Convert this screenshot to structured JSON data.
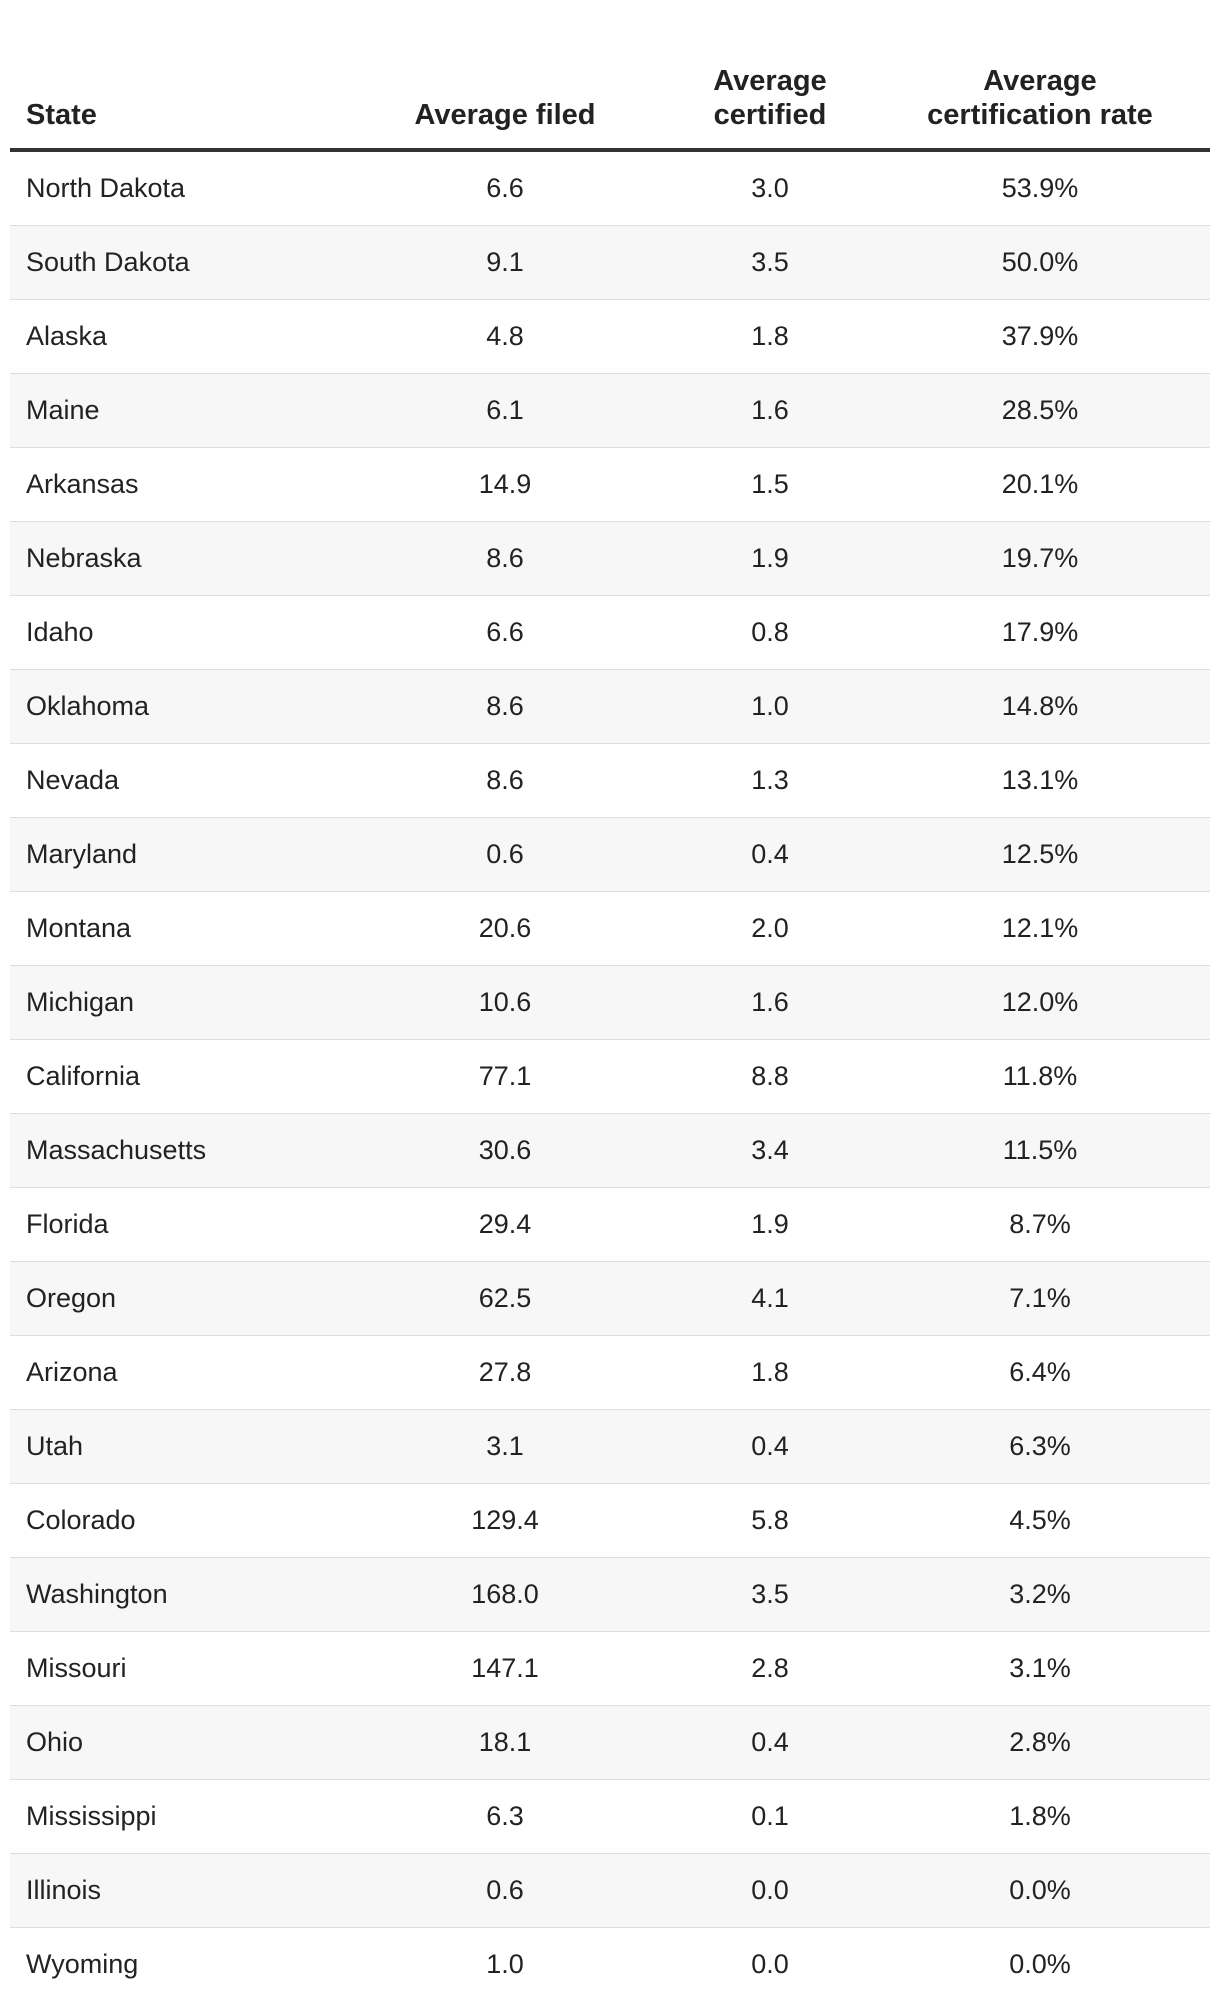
{
  "table": {
    "headers": [
      "State",
      "Average filed",
      "Average certified",
      "Average certification rate"
    ],
    "header_lines": [
      [
        "State"
      ],
      [
        "Average filed"
      ],
      [
        "Average",
        "certified"
      ],
      [
        "Average",
        "certification rate"
      ]
    ],
    "rows": [
      [
        "North Dakota",
        "6.6",
        "3.0",
        "53.9%"
      ],
      [
        "South Dakota",
        "9.1",
        "3.5",
        "50.0%"
      ],
      [
        "Alaska",
        "4.8",
        "1.8",
        "37.9%"
      ],
      [
        "Maine",
        "6.1",
        "1.6",
        "28.5%"
      ],
      [
        "Arkansas",
        "14.9",
        "1.5",
        "20.1%"
      ],
      [
        "Nebraska",
        "8.6",
        "1.9",
        "19.7%"
      ],
      [
        "Idaho",
        "6.6",
        "0.8",
        "17.9%"
      ],
      [
        "Oklahoma",
        "8.6",
        "1.0",
        "14.8%"
      ],
      [
        "Nevada",
        "8.6",
        "1.3",
        "13.1%"
      ],
      [
        "Maryland",
        "0.6",
        "0.4",
        "12.5%"
      ],
      [
        "Montana",
        "20.6",
        "2.0",
        "12.1%"
      ],
      [
        "Michigan",
        "10.6",
        "1.6",
        "12.0%"
      ],
      [
        "California",
        "77.1",
        "8.8",
        "11.8%"
      ],
      [
        "Massachusetts",
        "30.6",
        "3.4",
        "11.5%"
      ],
      [
        "Florida",
        "29.4",
        "1.9",
        "8.7%"
      ],
      [
        "Oregon",
        "62.5",
        "4.1",
        "7.1%"
      ],
      [
        "Arizona",
        "27.8",
        "1.8",
        "6.4%"
      ],
      [
        "Utah",
        "3.1",
        "0.4",
        "6.3%"
      ],
      [
        "Colorado",
        "129.4",
        "5.8",
        "4.5%"
      ],
      [
        "Washington",
        "168.0",
        "3.5",
        "3.2%"
      ],
      [
        "Missouri",
        "147.1",
        "2.8",
        "3.1%"
      ],
      [
        "Ohio",
        "18.1",
        "0.4",
        "2.8%"
      ],
      [
        "Mississippi",
        "6.3",
        "0.1",
        "1.8%"
      ],
      [
        "Illinois",
        "0.6",
        "0.0",
        "0.0%"
      ],
      [
        "Wyoming",
        "1.0",
        "0.0",
        "0.0%"
      ]
    ]
  }
}
